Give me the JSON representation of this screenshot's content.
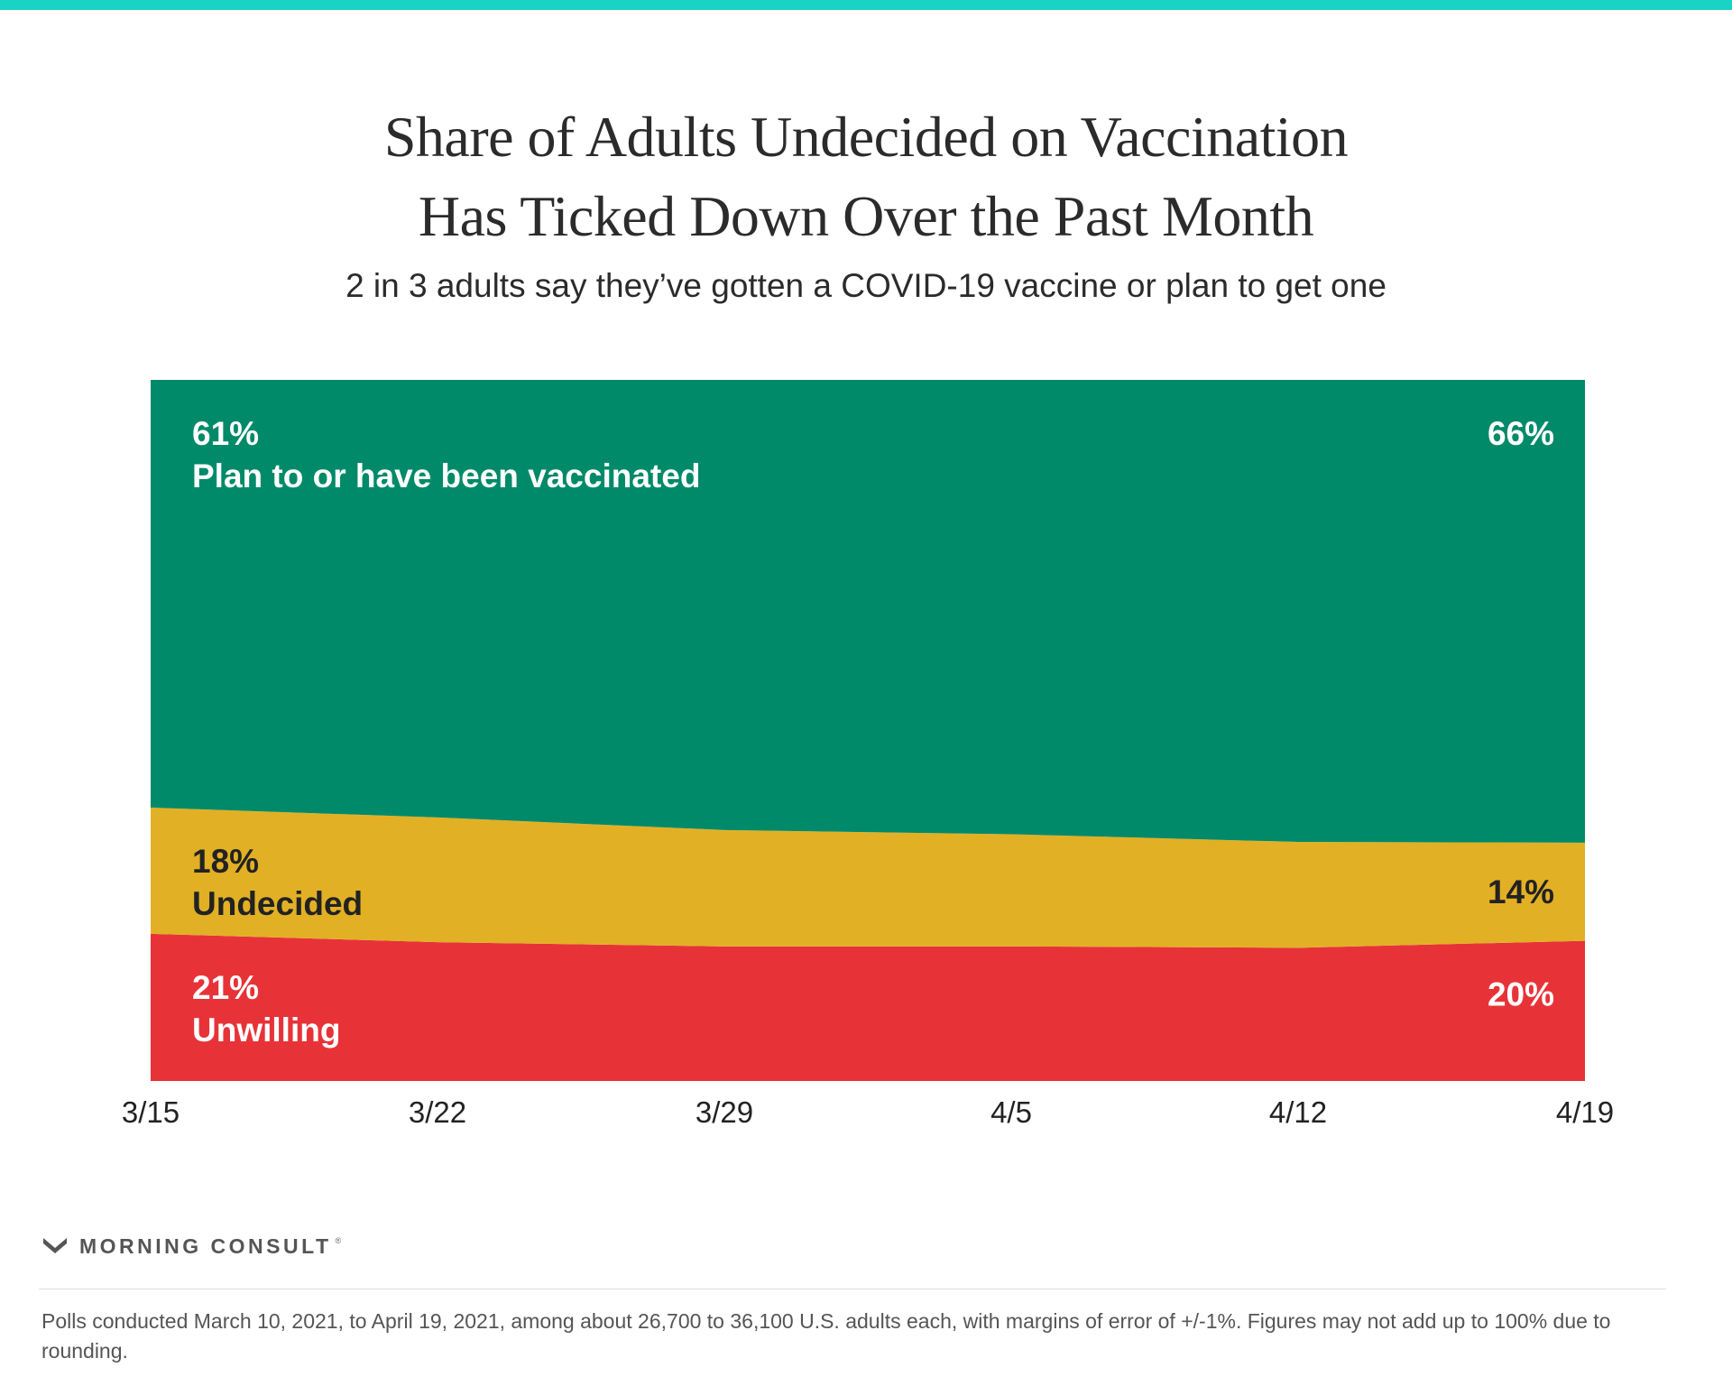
{
  "chart_data": {
    "type": "area",
    "stacked": true,
    "title_lines": [
      "Share of Adults Undecided on Vaccination",
      "Has Ticked Down Over the Past Month"
    ],
    "subtitle": "2 in 3 adults say they’ve gotten a COVID-19 vaccine or plan to get one",
    "x": [
      "3/15",
      "3/22",
      "3/29",
      "4/5",
      "4/12",
      "4/19"
    ],
    "ylim": [
      0,
      100
    ],
    "series": [
      {
        "name": "Unwilling",
        "values": [
          21,
          19.8,
          19.2,
          19.2,
          19.0,
          20
        ],
        "color": "#e73338",
        "start_label": "21%",
        "end_label": "20%"
      },
      {
        "name": "Undecided",
        "values": [
          18,
          17.8,
          16.6,
          16.0,
          15.1,
          14
        ],
        "color": "#e2b025",
        "start_label": "18%",
        "end_label": "14%"
      },
      {
        "name": "Plan to or have been vaccinated",
        "values": [
          61,
          62.4,
          64.2,
          64.8,
          65.9,
          66
        ],
        "color": "#008a69",
        "start_label": "61%",
        "end_label": "66%"
      }
    ]
  },
  "brand": {
    "name": "MORNING CONSULT",
    "logo_icon": "morning-consult-m-icon",
    "registered_mark": "®"
  },
  "footnote": "Polls conducted March 10, 2021, to April 19, 2021, among about 26,700 to 36,100 U.S. adults each, with margins of error of +/-1%. Figures may not add up to 100% due to rounding."
}
